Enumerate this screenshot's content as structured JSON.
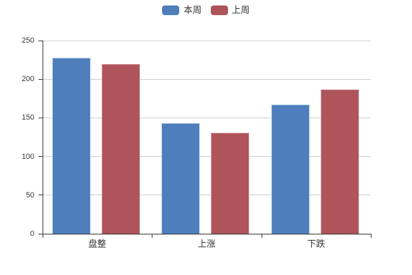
{
  "legend": {
    "items": [
      {
        "label": "本周",
        "color": "#4e7ebc"
      },
      {
        "label": "上周",
        "color": "#ae545a"
      }
    ]
  },
  "chart_data": {
    "type": "bar",
    "title": "",
    "xlabel": "",
    "ylabel": "",
    "categories": [
      "盘整",
      "上涨",
      "下跌"
    ],
    "series": [
      {
        "name": "本周",
        "color": "#4e7ebc",
        "border_color": "#b9cfe7",
        "values": [
          228,
          143,
          167
        ]
      },
      {
        "name": "上周",
        "color": "#ae545a",
        "border_color": "#d8aeb2",
        "values": [
          220,
          131,
          187
        ]
      }
    ],
    "ylim": [
      0,
      250
    ],
    "ytick_step": 50,
    "ytick_labels": [
      "0",
      "50",
      "100",
      "150",
      "200",
      "250"
    ],
    "grid": true,
    "legend_position": "top-center",
    "colors": {
      "axis": "#333333",
      "gridline": "#cccccc",
      "label_text": "#333333",
      "background": "#ffffff"
    }
  }
}
